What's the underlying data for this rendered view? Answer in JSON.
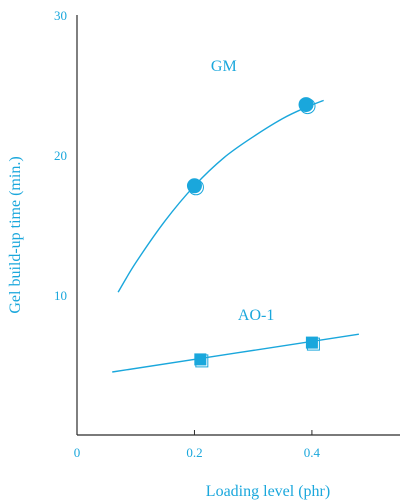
{
  "colors": {
    "accent": "#1aa7dc",
    "axis": "#2b2b2b"
  },
  "chart_data": {
    "type": "scatter",
    "title": "",
    "xlabel": "Loading level (phr)",
    "ylabel": "Gel build-up time (min.)",
    "xlim": [
      0,
      0.55
    ],
    "ylim": [
      0,
      30
    ],
    "x_ticks": [
      0,
      0.2,
      0.4
    ],
    "x_tick_labels": [
      "0",
      "0.2",
      "0.4"
    ],
    "y_ticks": [
      10,
      20,
      30
    ],
    "y_tick_labels": [
      "10",
      "20",
      "30"
    ],
    "grid": false,
    "legend": "none",
    "series": [
      {
        "name": "GM",
        "marker": "circle",
        "points": [
          {
            "x": 0.2,
            "y": 17.8
          },
          {
            "x": 0.39,
            "y": 23.6
          }
        ],
        "fit": [
          {
            "x": 0.07,
            "y": 10.2
          },
          {
            "x": 0.1,
            "y": 12.3
          },
          {
            "x": 0.15,
            "y": 15.3
          },
          {
            "x": 0.2,
            "y": 17.8
          },
          {
            "x": 0.25,
            "y": 19.8
          },
          {
            "x": 0.3,
            "y": 21.3
          },
          {
            "x": 0.35,
            "y": 22.6
          },
          {
            "x": 0.39,
            "y": 23.4
          },
          {
            "x": 0.42,
            "y": 23.9
          }
        ]
      },
      {
        "name": "AO-1",
        "marker": "square",
        "points": [
          {
            "x": 0.21,
            "y": 5.4
          },
          {
            "x": 0.4,
            "y": 6.6
          }
        ],
        "fit": [
          {
            "x": 0.06,
            "y": 4.5
          },
          {
            "x": 0.48,
            "y": 7.2
          }
        ]
      }
    ]
  }
}
